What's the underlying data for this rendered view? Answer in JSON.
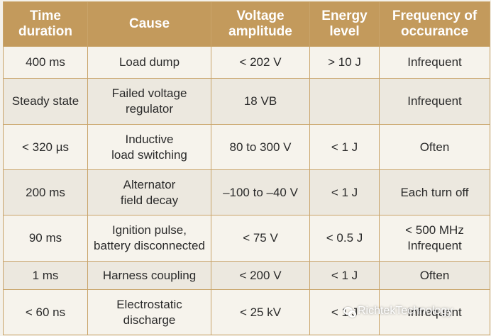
{
  "headers": [
    "Time\nduration",
    "Cause",
    "Voltage\namplitude",
    "Energy\nlevel",
    "Frequency of\noccurance"
  ],
  "rows": [
    [
      "400 ms",
      "Load dump",
      "< 202 V",
      "> 10 J",
      "Infrequent"
    ],
    [
      "Steady state",
      "Failed voltage\nregulator",
      "18 VB",
      "",
      "Infrequent"
    ],
    [
      "< 320 µs",
      "Inductive\nload switching",
      "80 to 300 V",
      "< 1 J",
      "Often"
    ],
    [
      "200 ms",
      "Alternator\nfield decay",
      "–100 to –40 V",
      "< 1 J",
      "Each turn off"
    ],
    [
      "90 ms",
      "Ignition pulse,\nbattery disconnected",
      "< 75 V",
      "< 0.5 J",
      "< 500 MHz\nInfrequent"
    ],
    [
      "1 ms",
      "Harness coupling",
      "< 200 V",
      "< 1 J",
      "Often"
    ],
    [
      "< 60 ns",
      "Electrostatic\ndischarge",
      "< 25 kV",
      "< 1 J",
      "Infrequent"
    ]
  ],
  "watermark": "RichtekTechnology",
  "colors": {
    "header_bg": "#c39a5c",
    "border": "#c9a46a",
    "row_bg": "#f6f3ec",
    "row_alt_bg": "#ece8df"
  }
}
